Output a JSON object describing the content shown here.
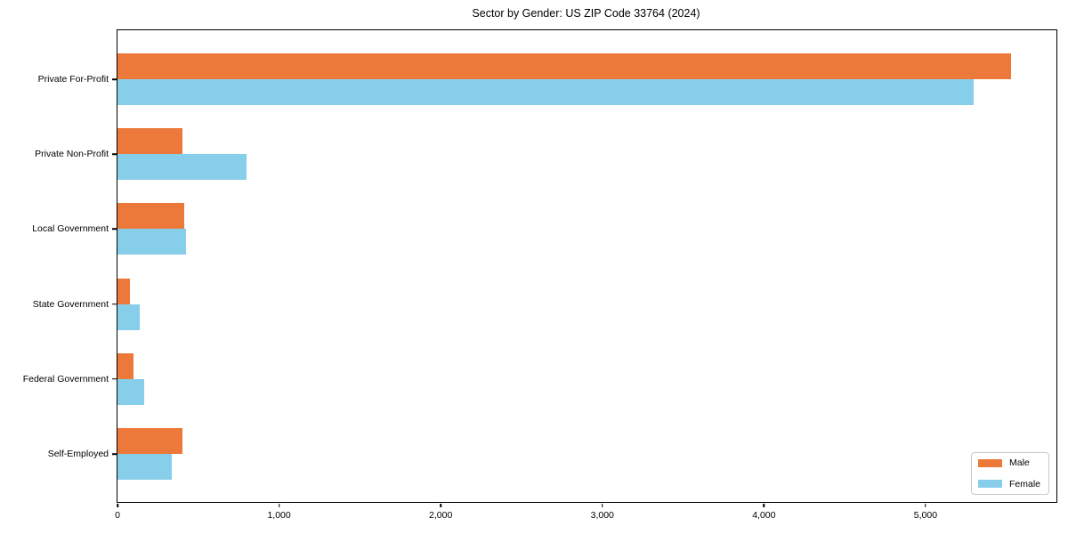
{
  "chart_data": {
    "type": "bar",
    "orientation": "horizontal",
    "title": "Sector by Gender: US ZIP Code 33764 (2024)",
    "categories": [
      "Private For-Profit",
      "Private Non-Profit",
      "Local Government",
      "State Government",
      "Federal Government",
      "Self-Employed"
    ],
    "series": [
      {
        "name": "Male",
        "color": "#ec7839",
        "values": [
          5530,
          400,
          415,
          75,
          100,
          400
        ]
      },
      {
        "name": "Female",
        "color": "#87ceeb",
        "values": [
          5300,
          800,
          425,
          135,
          165,
          335
        ]
      }
    ],
    "xlabel": "",
    "ylabel": "",
    "xlim": [
      0,
      5810
    ],
    "x_ticks": [
      0,
      1000,
      2000,
      3000,
      4000,
      5000
    ],
    "x_tick_labels": [
      "0",
      "1,000",
      "2,000",
      "3,000",
      "4,000",
      "5,000"
    ],
    "grid": false,
    "legend": {
      "position": "lower right",
      "entries": [
        {
          "label": "Male",
          "color": "#ec7839"
        },
        {
          "label": "Female",
          "color": "#87ceeb"
        }
      ]
    }
  }
}
